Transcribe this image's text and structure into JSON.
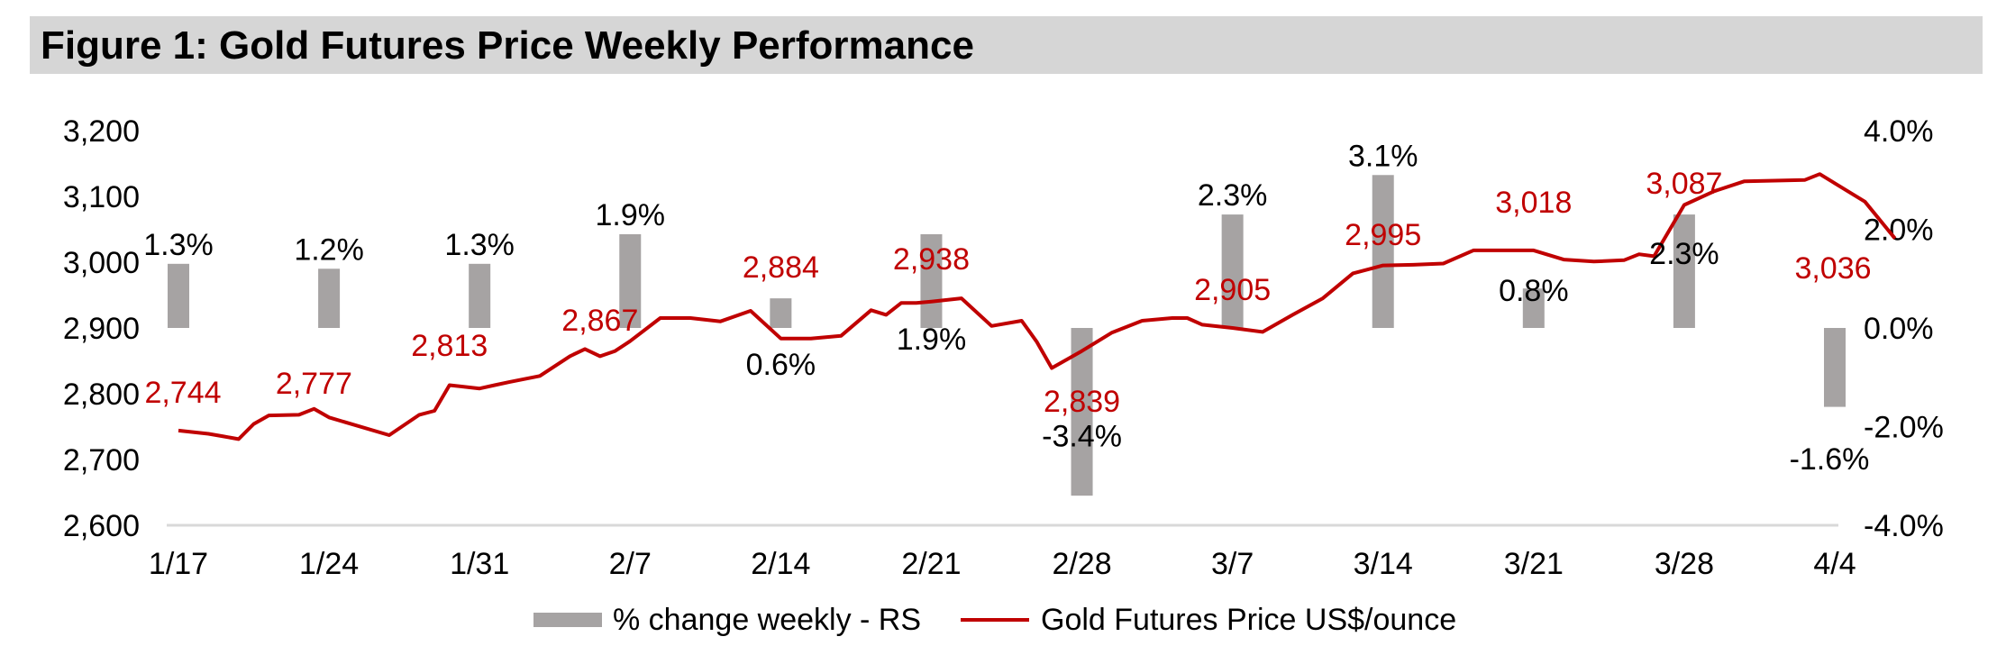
{
  "figure": {
    "title": "Figure 1: Gold Futures Price Weekly Performance"
  },
  "colors": {
    "price_line": "#c00000",
    "bars": "#a6a3a3",
    "price_label": "#c00000",
    "bar_label": "#000000",
    "axis": "#d9d9d9"
  },
  "chart_data": {
    "type": "bar+line",
    "title": "Figure 1: Gold Futures Price Weekly Performance",
    "categories": [
      "1/17",
      "1/24",
      "1/31",
      "2/7",
      "2/14",
      "2/21",
      "2/28",
      "3/7",
      "3/14",
      "3/21",
      "3/28",
      "4/4"
    ],
    "y_left": {
      "min": 2600,
      "max": 3200,
      "ticks": [
        "2,600",
        "2,700",
        "2,800",
        "2,900",
        "3,000",
        "3,100",
        "3,200"
      ]
    },
    "y_right": {
      "min": -4.0,
      "max": 4.0,
      "ticks": [
        "-4.0%",
        "-2.0%",
        "0.0%",
        "2.0%",
        "4.0%"
      ]
    },
    "bars": {
      "name": "% change weekly - RS",
      "values": [
        1.3,
        1.2,
        1.3,
        1.9,
        0.6,
        1.9,
        -3.4,
        2.3,
        3.1,
        0.8,
        2.3,
        -1.6
      ],
      "labels": [
        "1.3%",
        "1.2%",
        "1.3%",
        "1.9%",
        "0.6%",
        "1.9%",
        "-3.4%",
        "2.3%",
        "3.1%",
        "0.8%",
        "2.3%",
        "-1.6%"
      ]
    },
    "line": {
      "name": "Gold Futures Price US$/ounce",
      "x": [
        0,
        0.2,
        0.3,
        0.4,
        0.5,
        0.6,
        0.8,
        0.9,
        1.0,
        1.4,
        1.6,
        1.7,
        1.8,
        2.0,
        2.1,
        2.2,
        2.4,
        2.6,
        2.7,
        2.8,
        2.9,
        3.0,
        3.2,
        3.4,
        3.6,
        3.8,
        4.0,
        4.1,
        4.2,
        4.4,
        4.6,
        4.7,
        4.8,
        4.9,
        5.0,
        5.2,
        5.4,
        5.6,
        5.7,
        5.8,
        6.0,
        6.2,
        6.4,
        6.6,
        6.7,
        6.8,
        7.0,
        7.2,
        7.4,
        7.6,
        7.8,
        8.0,
        8.2,
        8.4,
        8.6,
        8.8,
        9.0,
        9.2,
        9.4,
        9.6,
        9.7,
        9.8,
        10.0,
        10.2,
        10.4,
        10.6,
        10.8,
        10.9,
        11.0,
        11.2,
        11.4
      ],
      "values": [
        2744,
        2739,
        2735,
        2731,
        2754,
        2767,
        2768,
        2777,
        2764,
        2737,
        2768,
        2774,
        2813,
        2808,
        2813,
        2818,
        2827,
        2857,
        2868,
        2857,
        2865,
        2880,
        2915,
        2915,
        2910,
        2926,
        2884,
        2884,
        2884,
        2888,
        2927,
        2920,
        2938,
        2938,
        2940,
        2945,
        2903,
        2911,
        2879,
        2839,
        2865,
        2893,
        2911,
        2915,
        2915,
        2905,
        2900,
        2894,
        2920,
        2945,
        2983,
        2995,
        2996,
        2998,
        3018,
        3018,
        3018,
        3004,
        3001,
        3003,
        3012,
        3009,
        3087,
        3108,
        3123,
        3124,
        3125,
        3134,
        3120,
        3092,
        3036
      ]
    },
    "price_labels": [
      {
        "x": 0.0,
        "text": "2,744"
      },
      {
        "x": 0.9,
        "text": "2,777"
      },
      {
        "x": 1.8,
        "text": "2,813"
      },
      {
        "x": 2.8,
        "text": "2,867"
      },
      {
        "x": 4.0,
        "text": "2,884"
      },
      {
        "x": 5.0,
        "text": "2,938"
      },
      {
        "x": 6.0,
        "text": "2,839"
      },
      {
        "x": 7.0,
        "text": "2,905"
      },
      {
        "x": 8.0,
        "text": "2,995"
      },
      {
        "x": 9.0,
        "text": "3,018"
      },
      {
        "x": 10.0,
        "text": "3,087"
      },
      {
        "x": 11.0,
        "text": "3,036"
      }
    ],
    "legend": {
      "position": "bottom-center",
      "items": [
        "% change weekly - RS",
        "Gold Futures Price US$/ounce"
      ]
    }
  }
}
